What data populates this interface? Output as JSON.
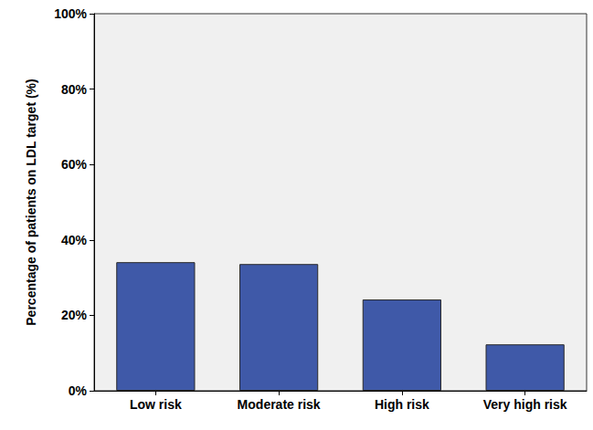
{
  "chart_data": {
    "type": "bar",
    "y_label": "Percentage of patients on LDL target (%)",
    "categories": [
      "Low risk",
      "Moderate risk",
      "High risk",
      "Very high risk"
    ],
    "values": [
      34.1,
      33.6,
      24.2,
      12.3
    ],
    "color": "#3f59a8",
    "ylim": [
      0,
      100
    ],
    "yticks": [
      {
        "value": 0,
        "label": "0%"
      },
      {
        "value": 20,
        "label": "20%"
      },
      {
        "value": 40,
        "label": "40%"
      },
      {
        "value": 60,
        "label": "60%"
      },
      {
        "value": 80,
        "label": "80%"
      },
      {
        "value": 100,
        "label": "100%"
      }
    ],
    "grid": false
  }
}
